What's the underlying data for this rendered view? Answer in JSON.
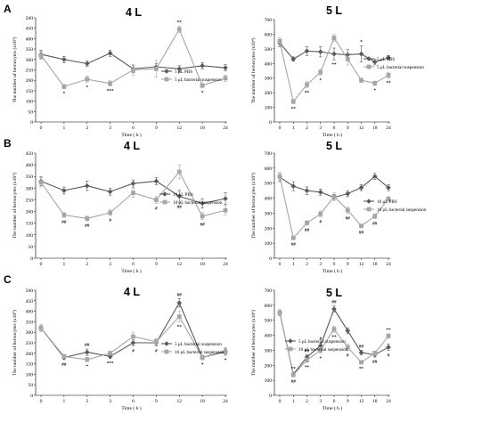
{
  "figure": {
    "panel_letters": [
      "A",
      "B",
      "C"
    ]
  },
  "colors": {
    "series_dark": "#595959",
    "series_light": "#a6a6a6",
    "axis": "#000000"
  },
  "chart_data": [
    {
      "type": "line",
      "panel": "A",
      "title": "4 L",
      "x": [
        "0",
        "1",
        "2",
        "3",
        "6",
        "9",
        "12",
        "18",
        "24"
      ],
      "xlabel": "Time ( h )",
      "ylabel": "The number of hemocytes (x10⁴)",
      "ylim": [
        0,
        500
      ],
      "yticks": [
        0,
        50,
        100,
        150,
        200,
        250,
        300,
        350,
        400,
        450,
        500
      ],
      "series": [
        {
          "name": "5 μL PBS",
          "style": "dark",
          "values": [
            325,
            300,
            280,
            330,
            255,
            265,
            255,
            270,
            260
          ],
          "err": [
            20,
            15,
            12,
            15,
            18,
            15,
            15,
            15,
            15
          ]
        },
        {
          "name": "5 μL bacterial suspension",
          "style": "light",
          "values": [
            320,
            170,
            205,
            185,
            250,
            255,
            445,
            175,
            210
          ],
          "err": [
            20,
            10,
            15,
            12,
            25,
            40,
            15,
            10,
            15
          ]
        }
      ],
      "annotations": [
        {
          "x": "1",
          "text": "*"
        },
        {
          "x": "2",
          "text": "*"
        },
        {
          "x": "3",
          "text": "***"
        },
        {
          "x": "12",
          "text": "**"
        },
        {
          "x": "18",
          "text": "*"
        }
      ]
    },
    {
      "type": "line",
      "panel": "A",
      "title": "5 L",
      "x": [
        "0",
        "1",
        "2",
        "3",
        "6",
        "9",
        "12",
        "18",
        "24"
      ],
      "xlabel": "Time ( h )",
      "ylabel": "The number of hemocytes (x10⁴)",
      "ylim": [
        0,
        700
      ],
      "yticks": [
        0,
        100,
        200,
        300,
        400,
        500,
        600,
        700
      ],
      "series": [
        {
          "name": "5 μL PBS",
          "style": "dark",
          "values": [
            540,
            430,
            485,
            480,
            465,
            460,
            465,
            410,
            440
          ],
          "err": [
            25,
            15,
            30,
            35,
            40,
            35,
            55,
            20,
            15
          ]
        },
        {
          "name": "5 μL bacterial suspension",
          "style": "light",
          "values": [
            550,
            140,
            255,
            340,
            575,
            430,
            285,
            265,
            320
          ],
          "err": [
            25,
            15,
            20,
            20,
            25,
            40,
            15,
            15,
            20
          ]
        }
      ],
      "annotations": [
        {
          "x": "1",
          "text": "**"
        },
        {
          "x": "2",
          "text": "**"
        },
        {
          "x": "3",
          "text": "*"
        },
        {
          "x": "6",
          "text": "**"
        },
        {
          "x": "12",
          "text": "*"
        },
        {
          "x": "18",
          "text": "*"
        },
        {
          "x": "24",
          "text": "**"
        }
      ]
    },
    {
      "type": "line",
      "panel": "B",
      "title": "4 L",
      "x": [
        "0",
        "1",
        "2",
        "3",
        "6",
        "9",
        "12",
        "18",
        "24"
      ],
      "xlabel": "Time ( h )",
      "ylabel": "The number of hemocytes (x10⁴)",
      "ylim": [
        0,
        450
      ],
      "yticks": [
        0,
        50,
        100,
        150,
        200,
        250,
        300,
        350,
        400,
        450
      ],
      "series": [
        {
          "name": "10 μL PBS",
          "style": "dark",
          "values": [
            330,
            290,
            310,
            285,
            320,
            330,
            265,
            235,
            255
          ],
          "err": [
            20,
            15,
            20,
            15,
            15,
            15,
            25,
            20,
            25
          ]
        },
        {
          "name": "10 μL bacterial suspension",
          "style": "light",
          "values": [
            325,
            185,
            170,
            195,
            280,
            250,
            370,
            180,
            205
          ],
          "err": [
            20,
            10,
            10,
            12,
            20,
            15,
            30,
            15,
            20
          ]
        }
      ],
      "annotations": [
        {
          "x": "1",
          "text": "##"
        },
        {
          "x": "2",
          "text": "##"
        },
        {
          "x": "3",
          "text": "#"
        },
        {
          "x": "9",
          "text": "#"
        },
        {
          "x": "12",
          "text": "##"
        },
        {
          "x": "18",
          "text": "##"
        }
      ]
    },
    {
      "type": "line",
      "panel": "B",
      "title": "5 L",
      "x": [
        "0",
        "1",
        "2",
        "3",
        "6",
        "9",
        "12",
        "18",
        "24"
      ],
      "xlabel": "Time ( h )",
      "ylabel": "The number of hemocytes (x10⁴)",
      "ylim": [
        0,
        700
      ],
      "yticks": [
        0,
        100,
        200,
        300,
        400,
        500,
        600,
        700
      ],
      "series": [
        {
          "name": "10 μL PBS",
          "style": "dark",
          "values": [
            540,
            480,
            450,
            440,
            405,
            430,
            470,
            545,
            470
          ],
          "err": [
            30,
            30,
            25,
            20,
            20,
            20,
            20,
            20,
            20
          ]
        },
        {
          "name": "10 μL bacterial suspension",
          "style": "light",
          "values": [
            545,
            135,
            235,
            295,
            410,
            320,
            215,
            280,
            395
          ],
          "err": [
            25,
            10,
            15,
            20,
            25,
            20,
            10,
            15,
            15
          ]
        }
      ],
      "annotations": [
        {
          "x": "1",
          "text": "##"
        },
        {
          "x": "2",
          "text": "##"
        },
        {
          "x": "3",
          "text": "#"
        },
        {
          "x": "9",
          "text": "##"
        },
        {
          "x": "12",
          "text": "##"
        },
        {
          "x": "18",
          "text": "##"
        }
      ]
    },
    {
      "type": "line",
      "panel": "C",
      "title": "4 L",
      "x": [
        "0",
        "1",
        "2",
        "3",
        "6",
        "9",
        "12",
        "18",
        "24"
      ],
      "xlabel": "Time ( h )",
      "ylabel": "The number of hemocytes (x10⁴)",
      "ylim": [
        0,
        500
      ],
      "yticks": [
        0,
        50,
        100,
        150,
        200,
        250,
        300,
        350,
        400,
        450,
        500
      ],
      "series": [
        {
          "name": "5 μL bacterial suspension",
          "style": "dark",
          "values": [
            320,
            180,
            205,
            185,
            250,
            250,
            440,
            180,
            210
          ],
          "err": [
            15,
            10,
            15,
            10,
            15,
            15,
            20,
            10,
            15
          ]
        },
        {
          "name": "10 μL bacterial suspension",
          "style": "light",
          "values": [
            320,
            185,
            170,
            200,
            280,
            255,
            375,
            180,
            205
          ],
          "err": [
            15,
            10,
            10,
            10,
            20,
            15,
            25,
            10,
            15
          ]
        }
      ],
      "annotations": [
        {
          "x": "1",
          "text": "##"
        },
        {
          "x": "2",
          "text": "*"
        },
        {
          "x": "2",
          "text": "##"
        },
        {
          "x": "3",
          "text": "***"
        },
        {
          "x": "6",
          "text": "#"
        },
        {
          "x": "9",
          "text": "#"
        },
        {
          "x": "12",
          "text": "**"
        },
        {
          "x": "12",
          "text": "##"
        },
        {
          "x": "18",
          "text": "*"
        },
        {
          "x": "24",
          "text": "*"
        }
      ]
    },
    {
      "type": "line",
      "panel": "C",
      "title": "5 L",
      "x": [
        "0",
        "1",
        "2",
        "3",
        "6",
        "9",
        "12",
        "18",
        "24"
      ],
      "xlabel": "Time ( h )",
      "ylabel": "The number of hemocytes (x10⁴)",
      "ylim": [
        0,
        700
      ],
      "yticks": [
        0,
        100,
        200,
        300,
        400,
        500,
        600,
        700
      ],
      "series": [
        {
          "name": "5 μL bacterial suspension",
          "style": "dark",
          "values": [
            550,
            140,
            255,
            330,
            575,
            430,
            285,
            270,
            320
          ],
          "err": [
            20,
            10,
            15,
            20,
            20,
            20,
            15,
            15,
            20
          ]
        },
        {
          "name": "10 μL bacterial suspension",
          "style": "light",
          "values": [
            550,
            135,
            235,
            300,
            440,
            320,
            220,
            280,
            395
          ],
          "err": [
            20,
            10,
            15,
            20,
            20,
            20,
            10,
            15,
            15
          ]
        }
      ],
      "annotations": [
        {
          "x": "1",
          "text": "##"
        },
        {
          "x": "1",
          "text": "**"
        },
        {
          "x": "2",
          "text": "**"
        },
        {
          "x": "2",
          "text": "##"
        },
        {
          "x": "3",
          "text": "*"
        },
        {
          "x": "3",
          "text": "#"
        },
        {
          "x": "6",
          "text": "**"
        },
        {
          "x": "6",
          "text": "##"
        },
        {
          "x": "9",
          "text": "#"
        },
        {
          "x": "12",
          "text": "**"
        },
        {
          "x": "12",
          "text": "##"
        },
        {
          "x": "18",
          "text": "##"
        },
        {
          "x": "24",
          "text": "#"
        },
        {
          "x": "24",
          "text": "**"
        }
      ]
    }
  ]
}
